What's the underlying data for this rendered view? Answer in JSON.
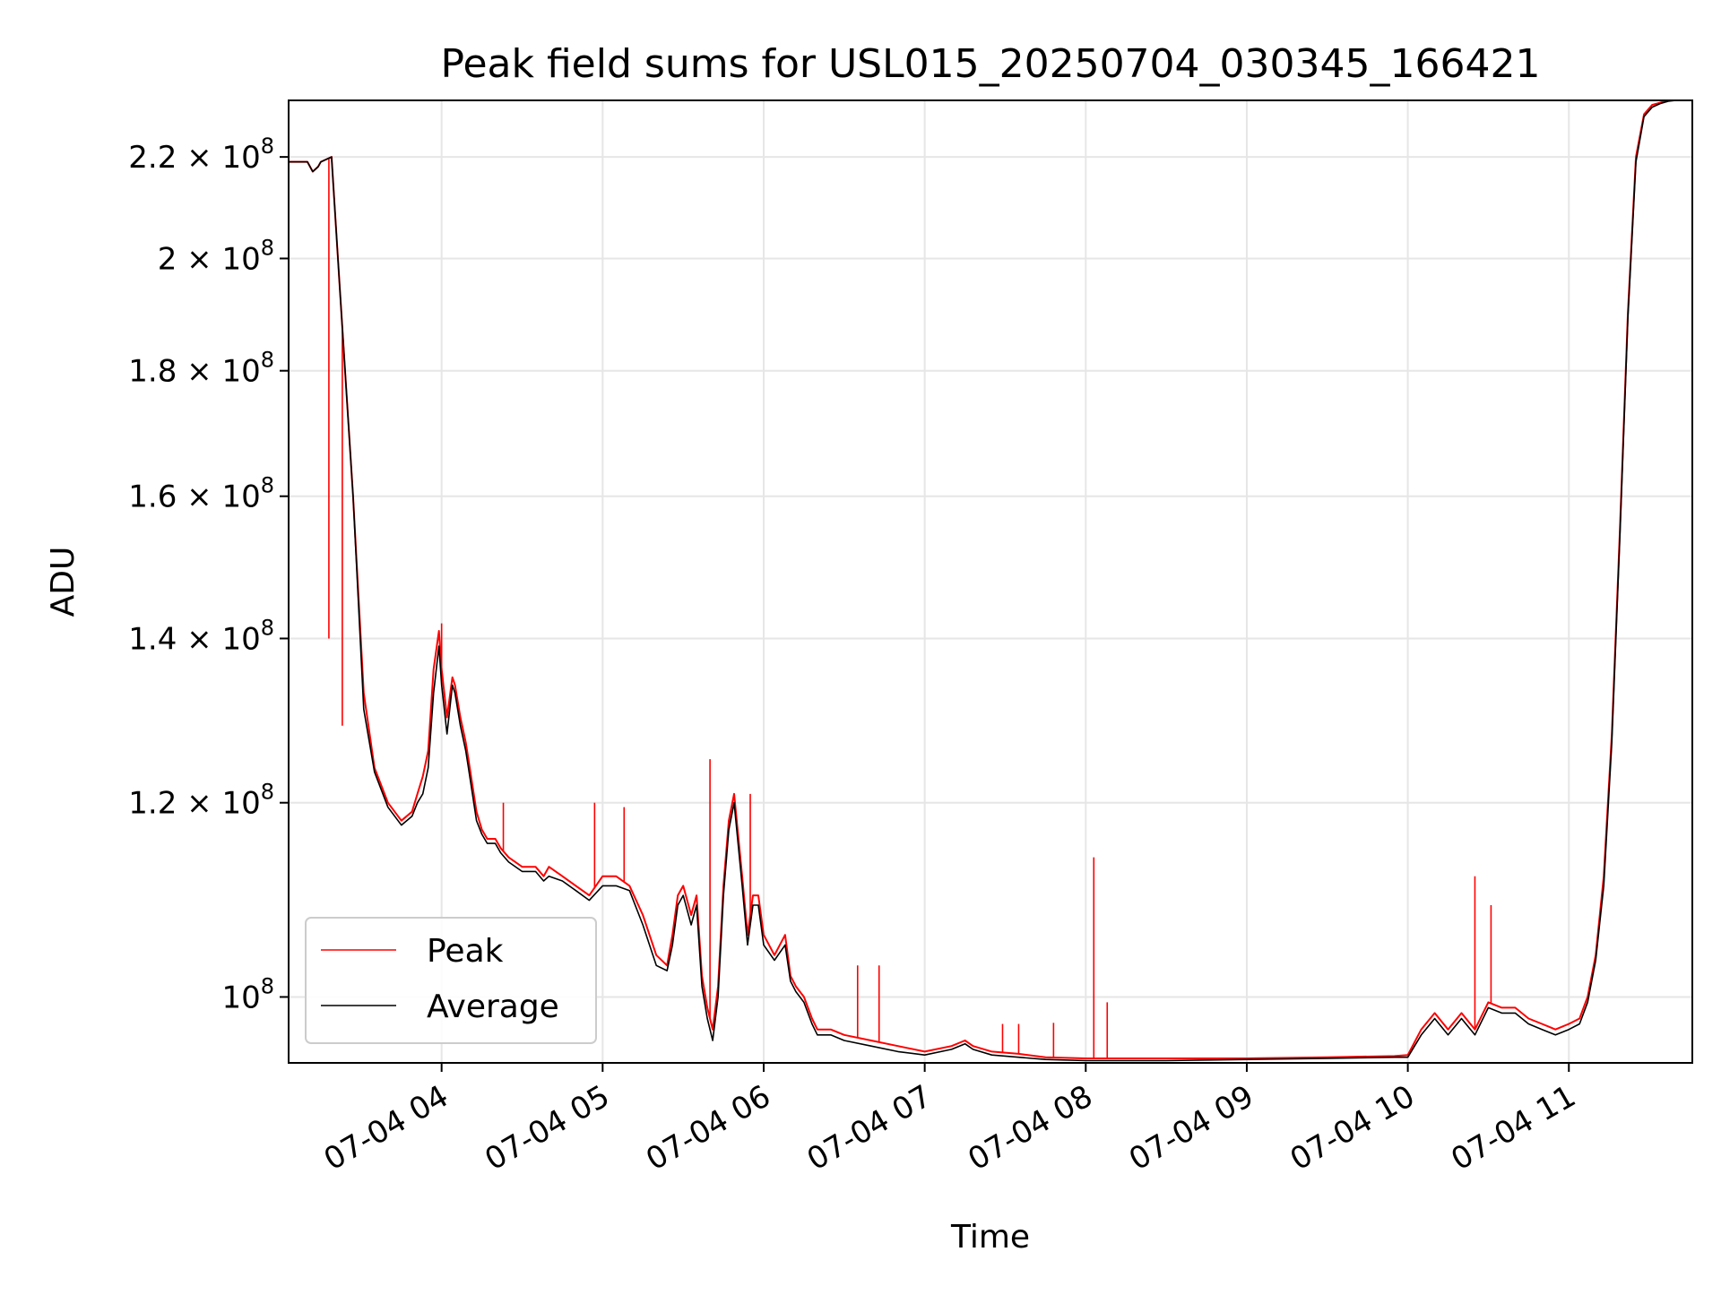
{
  "chart_data": {
    "type": "line",
    "title": "Peak field sums for USL015_20250704_030345_166421",
    "xlabel": "Time",
    "ylabel": "ADU",
    "yscale": "log",
    "xlim": [
      "2025-07-04 03:03",
      "2025-07-04 11:46"
    ],
    "ylim": [
      94000000,
      232000000
    ],
    "x_ticks": [
      "07-04 04",
      "07-04 05",
      "07-04 06",
      "07-04 07",
      "07-04 08",
      "07-04 09",
      "07-04 10",
      "07-04 11"
    ],
    "y_ticks": [
      {
        "value": 100000000,
        "mantissa": "",
        "exp": "8"
      },
      {
        "value": 120000000,
        "mantissa": "1.2 × ",
        "exp": "8"
      },
      {
        "value": 140000000,
        "mantissa": "1.4 × ",
        "exp": "8"
      },
      {
        "value": 160000000,
        "mantissa": "1.6 × ",
        "exp": "8"
      },
      {
        "value": 180000000,
        "mantissa": "1.8 × ",
        "exp": "8"
      },
      {
        "value": 200000000,
        "mantissa": "2 × ",
        "exp": "8"
      },
      {
        "value": 220000000,
        "mantissa": "2.2 × ",
        "exp": "8"
      }
    ],
    "grid": true,
    "legend_position": "lower-left",
    "series": [
      {
        "name": "Peak",
        "color": "#ff0000",
        "x": [
          "2025-07-04 03:03",
          "2025-07-04 03:10",
          "2025-07-04 03:12",
          "2025-07-04 03:14",
          "2025-07-04 03:15",
          "2025-07-04 03:19",
          "2025-07-04 03:22",
          "2025-07-04 03:27",
          "2025-07-04 03:31",
          "2025-07-04 03:35",
          "2025-07-04 03:40",
          "2025-07-04 03:45",
          "2025-07-04 03:49",
          "2025-07-04 03:51",
          "2025-07-04 03:53",
          "2025-07-04 03:55",
          "2025-07-04 03:57",
          "2025-07-04 03:59",
          "2025-07-04 04:00",
          "2025-07-04 04:02",
          "2025-07-04 04:04",
          "2025-07-04 04:05",
          "2025-07-04 04:07",
          "2025-07-04 04:09",
          "2025-07-04 04:10",
          "2025-07-04 04:13",
          "2025-07-04 04:15",
          "2025-07-04 04:17",
          "2025-07-04 04:20",
          "2025-07-04 04:22",
          "2025-07-04 04:25",
          "2025-07-04 04:30",
          "2025-07-04 04:35",
          "2025-07-04 04:38",
          "2025-07-04 04:40",
          "2025-07-04 04:45",
          "2025-07-04 04:50",
          "2025-07-04 04:55",
          "2025-07-04 05:00",
          "2025-07-04 05:05",
          "2025-07-04 05:10",
          "2025-07-04 05:15",
          "2025-07-04 05:20",
          "2025-07-04 05:24",
          "2025-07-04 05:26",
          "2025-07-04 05:28",
          "2025-07-04 05:30",
          "2025-07-04 05:33",
          "2025-07-04 05:35",
          "2025-07-04 05:37",
          "2025-07-04 05:39",
          "2025-07-04 05:41",
          "2025-07-04 05:43",
          "2025-07-04 05:45",
          "2025-07-04 05:47",
          "2025-07-04 05:49",
          "2025-07-04 05:52",
          "2025-07-04 05:54",
          "2025-07-04 05:56",
          "2025-07-04 05:58",
          "2025-07-04 06:00",
          "2025-07-04 06:04",
          "2025-07-04 06:08",
          "2025-07-04 06:10",
          "2025-07-04 06:12",
          "2025-07-04 06:15",
          "2025-07-04 06:18",
          "2025-07-04 06:20",
          "2025-07-04 06:25",
          "2025-07-04 06:30",
          "2025-07-04 06:40",
          "2025-07-04 06:50",
          "2025-07-04 07:00",
          "2025-07-04 07:10",
          "2025-07-04 07:15",
          "2025-07-04 07:18",
          "2025-07-04 07:25",
          "2025-07-04 07:35",
          "2025-07-04 07:45",
          "2025-07-04 08:00",
          "2025-07-04 08:30",
          "2025-07-04 09:00",
          "2025-07-04 09:30",
          "2025-07-04 09:55",
          "2025-07-04 10:00",
          "2025-07-04 10:05",
          "2025-07-04 10:10",
          "2025-07-04 10:15",
          "2025-07-04 10:20",
          "2025-07-04 10:25",
          "2025-07-04 10:30",
          "2025-07-04 10:35",
          "2025-07-04 10:40",
          "2025-07-04 10:45",
          "2025-07-04 10:50",
          "2025-07-04 10:55",
          "2025-07-04 11:00",
          "2025-07-04 11:04",
          "2025-07-04 11:07",
          "2025-07-04 11:10",
          "2025-07-04 11:13",
          "2025-07-04 11:16",
          "2025-07-04 11:19",
          "2025-07-04 11:22",
          "2025-07-04 11:25",
          "2025-07-04 11:28",
          "2025-07-04 11:31",
          "2025-07-04 11:34",
          "2025-07-04 11:37",
          "2025-07-04 11:40",
          "2025-07-04 11:46"
        ],
        "values": [
          219000000,
          219000000,
          217000000,
          218000000,
          219000000,
          220000000,
          195000000,
          160000000,
          133000000,
          124000000,
          120000000,
          118000000,
          119000000,
          121000000,
          123000000,
          126000000,
          136000000,
          141000000,
          136000000,
          130000000,
          135000000,
          134000000,
          130000000,
          127000000,
          125000000,
          119000000,
          117000000,
          116000000,
          116000000,
          115000000,
          114000000,
          113000000,
          113000000,
          112000000,
          113000000,
          112000000,
          111000000,
          110000000,
          112000000,
          112000000,
          111000000,
          108000000,
          104000000,
          103000000,
          106000000,
          110000000,
          111000000,
          108000000,
          110000000,
          102000000,
          99000000,
          97000000,
          101000000,
          111000000,
          118000000,
          121000000,
          112000000,
          106000000,
          110000000,
          110000000,
          106000000,
          104000000,
          106000000,
          102000000,
          101000000,
          100000000,
          98000000,
          97000000,
          97000000,
          96500000,
          96000000,
          95500000,
          95000000,
          95500000,
          96000000,
          95500000,
          95000000,
          94800000,
          94500000,
          94400000,
          94400000,
          94400000,
          94500000,
          94600000,
          94700000,
          97000000,
          98500000,
          97000000,
          98500000,
          97000000,
          99500000,
          99000000,
          99000000,
          98000000,
          97500000,
          97000000,
          97500000,
          98000000,
          100000000,
          104000000,
          112000000,
          128000000,
          155000000,
          190000000,
          220000000,
          229000000,
          231000000,
          231500000,
          232000000,
          232000000,
          232000000
        ],
        "spikes": [
          {
            "x": "2025-07-04 03:18",
            "value": 140000000
          },
          {
            "x": "2025-07-04 03:23",
            "value": 129000000
          },
          {
            "x": "2025-07-04 04:00",
            "value": 142000000
          },
          {
            "x": "2025-07-04 04:23",
            "value": 120000000
          },
          {
            "x": "2025-07-04 04:57",
            "value": 120000000
          },
          {
            "x": "2025-07-04 05:08",
            "value": 119500000
          },
          {
            "x": "2025-07-04 05:40",
            "value": 125000000
          },
          {
            "x": "2025-07-04 05:55",
            "value": 121000000
          },
          {
            "x": "2025-07-04 06:35",
            "value": 103000000
          },
          {
            "x": "2025-07-04 06:43",
            "value": 103000000
          },
          {
            "x": "2025-07-04 07:29",
            "value": 97500000
          },
          {
            "x": "2025-07-04 07:35",
            "value": 97500000
          },
          {
            "x": "2025-07-04 07:48",
            "value": 97600000
          },
          {
            "x": "2025-07-04 08:03",
            "value": 114000000
          },
          {
            "x": "2025-07-04 08:08",
            "value": 99500000
          },
          {
            "x": "2025-07-04 10:25",
            "value": 112000000
          },
          {
            "x": "2025-07-04 10:31",
            "value": 109000000
          }
        ]
      },
      {
        "name": "Average",
        "color": "#000000",
        "x": [
          "2025-07-04 03:03",
          "2025-07-04 03:10",
          "2025-07-04 03:12",
          "2025-07-04 03:14",
          "2025-07-04 03:15",
          "2025-07-04 03:19",
          "2025-07-04 03:22",
          "2025-07-04 03:27",
          "2025-07-04 03:31",
          "2025-07-04 03:35",
          "2025-07-04 03:40",
          "2025-07-04 03:45",
          "2025-07-04 03:49",
          "2025-07-04 03:51",
          "2025-07-04 03:53",
          "2025-07-04 03:55",
          "2025-07-04 03:57",
          "2025-07-04 03:59",
          "2025-07-04 04:00",
          "2025-07-04 04:02",
          "2025-07-04 04:04",
          "2025-07-04 04:05",
          "2025-07-04 04:07",
          "2025-07-04 04:09",
          "2025-07-04 04:10",
          "2025-07-04 04:13",
          "2025-07-04 04:15",
          "2025-07-04 04:17",
          "2025-07-04 04:20",
          "2025-07-04 04:22",
          "2025-07-04 04:25",
          "2025-07-04 04:30",
          "2025-07-04 04:35",
          "2025-07-04 04:38",
          "2025-07-04 04:40",
          "2025-07-04 04:45",
          "2025-07-04 04:50",
          "2025-07-04 04:55",
          "2025-07-04 05:00",
          "2025-07-04 05:05",
          "2025-07-04 05:10",
          "2025-07-04 05:15",
          "2025-07-04 05:20",
          "2025-07-04 05:24",
          "2025-07-04 05:26",
          "2025-07-04 05:28",
          "2025-07-04 05:30",
          "2025-07-04 05:33",
          "2025-07-04 05:35",
          "2025-07-04 05:37",
          "2025-07-04 05:39",
          "2025-07-04 05:41",
          "2025-07-04 05:43",
          "2025-07-04 05:45",
          "2025-07-04 05:47",
          "2025-07-04 05:49",
          "2025-07-04 05:52",
          "2025-07-04 05:54",
          "2025-07-04 05:56",
          "2025-07-04 05:58",
          "2025-07-04 06:00",
          "2025-07-04 06:04",
          "2025-07-04 06:08",
          "2025-07-04 06:10",
          "2025-07-04 06:12",
          "2025-07-04 06:15",
          "2025-07-04 06:18",
          "2025-07-04 06:20",
          "2025-07-04 06:25",
          "2025-07-04 06:30",
          "2025-07-04 06:40",
          "2025-07-04 06:50",
          "2025-07-04 07:00",
          "2025-07-04 07:10",
          "2025-07-04 07:15",
          "2025-07-04 07:18",
          "2025-07-04 07:25",
          "2025-07-04 07:35",
          "2025-07-04 07:45",
          "2025-07-04 08:00",
          "2025-07-04 08:30",
          "2025-07-04 09:00",
          "2025-07-04 09:30",
          "2025-07-04 09:55",
          "2025-07-04 10:00",
          "2025-07-04 10:05",
          "2025-07-04 10:10",
          "2025-07-04 10:15",
          "2025-07-04 10:20",
          "2025-07-04 10:25",
          "2025-07-04 10:30",
          "2025-07-04 10:35",
          "2025-07-04 10:40",
          "2025-07-04 10:45",
          "2025-07-04 10:50",
          "2025-07-04 10:55",
          "2025-07-04 11:00",
          "2025-07-04 11:04",
          "2025-07-04 11:07",
          "2025-07-04 11:10",
          "2025-07-04 11:13",
          "2025-07-04 11:16",
          "2025-07-04 11:19",
          "2025-07-04 11:22",
          "2025-07-04 11:25",
          "2025-07-04 11:28",
          "2025-07-04 11:31",
          "2025-07-04 11:34",
          "2025-07-04 11:37",
          "2025-07-04 11:40",
          "2025-07-04 11:46"
        ],
        "values": [
          219000000,
          219000000,
          217000000,
          218000000,
          219000000,
          220000000,
          195000000,
          160000000,
          131000000,
          123500000,
          119500000,
          117500000,
          118500000,
          120000000,
          121000000,
          124000000,
          133000000,
          139000000,
          134000000,
          128000000,
          134000000,
          133000000,
          129000000,
          126000000,
          124000000,
          118000000,
          116500000,
          115500000,
          115500000,
          114500000,
          113500000,
          112500000,
          112500000,
          111500000,
          112000000,
          111500000,
          110500000,
          109500000,
          111000000,
          111000000,
          110500000,
          107000000,
          103000000,
          102500000,
          105000000,
          109000000,
          110000000,
          107000000,
          109000000,
          101000000,
          98000000,
          96000000,
          100000000,
          110000000,
          117000000,
          120000000,
          111000000,
          105000000,
          109000000,
          109000000,
          105000000,
          103500000,
          105000000,
          101500000,
          100500000,
          99500000,
          97500000,
          96500000,
          96500000,
          96000000,
          95500000,
          95000000,
          94700000,
          95200000,
          95700000,
          95200000,
          94700000,
          94500000,
          94300000,
          94200000,
          94200000,
          94300000,
          94400000,
          94500000,
          94500000,
          96500000,
          98000000,
          96500000,
          98000000,
          96500000,
          99000000,
          98500000,
          98500000,
          97500000,
          97000000,
          96500000,
          97000000,
          97500000,
          99500000,
          103500000,
          111000000,
          127000000,
          154000000,
          189000000,
          219000000,
          228500000,
          230500000,
          231300000,
          231800000,
          232000000,
          232000000
        ]
      }
    ]
  }
}
